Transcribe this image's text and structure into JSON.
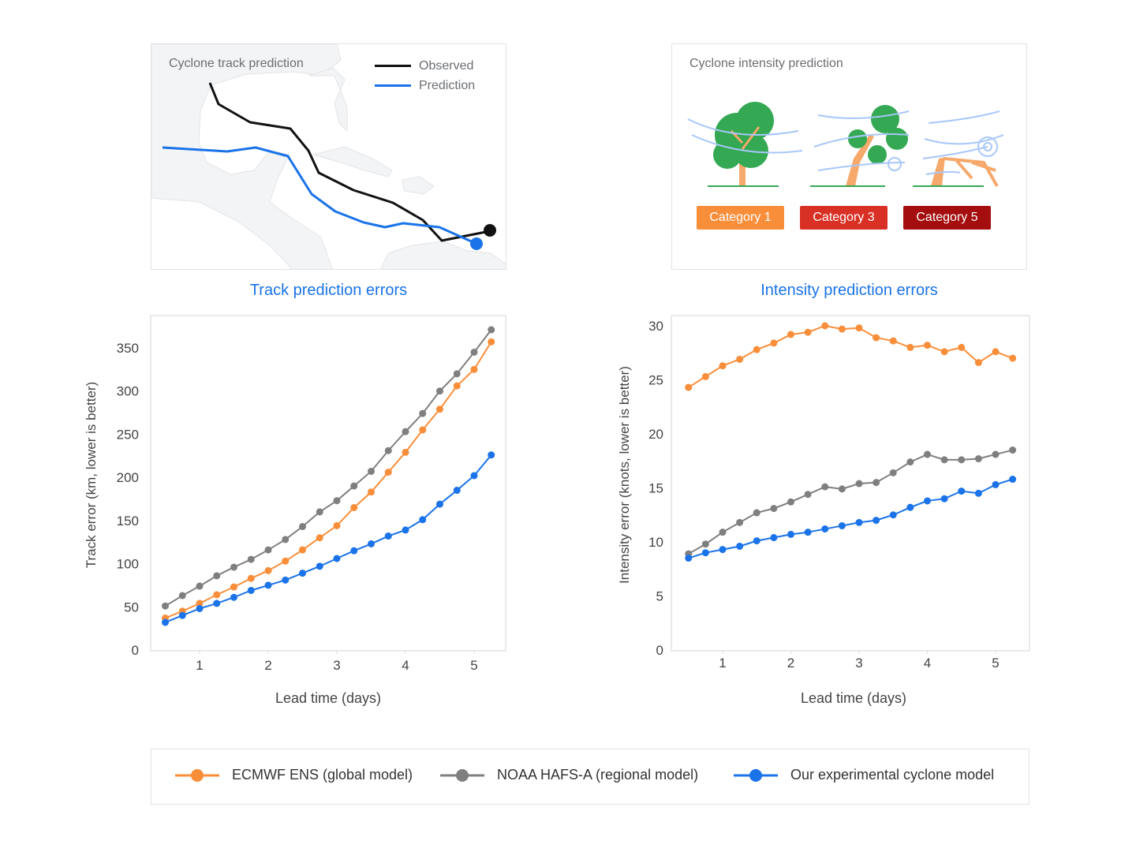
{
  "track_panel": {
    "title": "Cyclone track prediction",
    "legend": [
      {
        "label": "Observed",
        "color": "#111111"
      },
      {
        "label": "Prediction",
        "color": "#1a73e8"
      }
    ]
  },
  "intensity_panel": {
    "title": "Cyclone intensity prediction",
    "categories": [
      {
        "label": "Category 1",
        "color": "#f98e3a"
      },
      {
        "label": "Category 3",
        "color": "#d93025"
      },
      {
        "label": "Category 5",
        "color": "#a50e0e"
      }
    ]
  },
  "legend": {
    "items": [
      {
        "label": "ECMWF ENS (global model)",
        "color": "#f98e3a"
      },
      {
        "label": "NOAA HAFS-A (regional model)",
        "color": "#7f7f7f"
      },
      {
        "label": "Our experimental cyclone model",
        "color": "#1a73e8"
      }
    ]
  },
  "chart_data": [
    {
      "type": "line",
      "title": "Track prediction errors",
      "xlabel": "Lead time (days)",
      "ylabel": "Track error (km, lower is better)",
      "xlim": [
        0.3,
        5.5
      ],
      "ylim": [
        0,
        380
      ],
      "xticks": [
        1,
        2,
        3,
        4,
        5
      ],
      "yticks": [
        0,
        50,
        100,
        150,
        200,
        250,
        300,
        350
      ],
      "grid": false,
      "x": [
        0.5,
        0.75,
        1,
        1.25,
        1.5,
        1.75,
        2,
        2.25,
        2.5,
        2.75,
        3,
        3.25,
        3.5,
        3.75,
        4,
        4.25,
        4.5,
        4.75,
        5,
        5.25
      ],
      "series": [
        {
          "name": "ECMWF ENS (global model)",
          "color": "#f98e3a",
          "values": [
            37,
            45,
            54,
            64,
            73,
            83,
            92,
            103,
            116,
            130,
            144,
            165,
            183,
            206,
            229,
            255,
            279,
            306,
            325,
            357
          ]
        },
        {
          "name": "NOAA HAFS-A (regional model)",
          "color": "#7f7f7f",
          "values": [
            51,
            63,
            74,
            86,
            96,
            105,
            116,
            128,
            143,
            160,
            173,
            190,
            207,
            231,
            253,
            274,
            300,
            320,
            345,
            371
          ]
        },
        {
          "name": "Our experimental cyclone model",
          "color": "#1a73e8",
          "values": [
            32,
            40,
            48,
            54,
            61,
            69,
            75,
            81,
            89,
            97,
            106,
            115,
            123,
            132,
            139,
            151,
            169,
            185,
            202,
            226
          ]
        }
      ]
    },
    {
      "type": "line",
      "title": "Intensity prediction errors",
      "xlabel": "Lead time (days)",
      "ylabel": "Intensity error (knots, lower is better)",
      "xlim": [
        0.3,
        5.5
      ],
      "ylim": [
        0,
        31
      ],
      "xticks": [
        1,
        2,
        3,
        4,
        5
      ],
      "yticks": [
        0,
        5,
        10,
        15,
        20,
        25,
        30
      ],
      "grid": false,
      "x": [
        0.5,
        0.75,
        1,
        1.25,
        1.5,
        1.75,
        2,
        2.25,
        2.5,
        2.75,
        3,
        3.25,
        3.5,
        3.75,
        4,
        4.25,
        4.5,
        4.75,
        5,
        5.25
      ],
      "series": [
        {
          "name": "ECMWF ENS (global model)",
          "color": "#f98e3a",
          "values": [
            24.3,
            25.3,
            26.3,
            26.9,
            27.8,
            28.4,
            29.2,
            29.4,
            30.0,
            29.7,
            29.8,
            28.9,
            28.6,
            28.0,
            28.2,
            27.6,
            28.0,
            26.6,
            27.6,
            27.0
          ]
        },
        {
          "name": "NOAA HAFS-A (regional model)",
          "color": "#7f7f7f",
          "values": [
            8.9,
            9.8,
            10.9,
            11.8,
            12.7,
            13.1,
            13.7,
            14.4,
            15.1,
            14.9,
            15.4,
            15.5,
            16.4,
            17.4,
            18.1,
            17.6,
            17.6,
            17.7,
            18.1,
            18.5
          ]
        },
        {
          "name": "Our experimental cyclone model",
          "color": "#1a73e8",
          "values": [
            8.5,
            9.0,
            9.3,
            9.6,
            10.1,
            10.4,
            10.7,
            10.9,
            11.2,
            11.5,
            11.8,
            12.0,
            12.5,
            13.2,
            13.8,
            14.0,
            14.7,
            14.5,
            15.3,
            15.8
          ]
        }
      ]
    }
  ]
}
